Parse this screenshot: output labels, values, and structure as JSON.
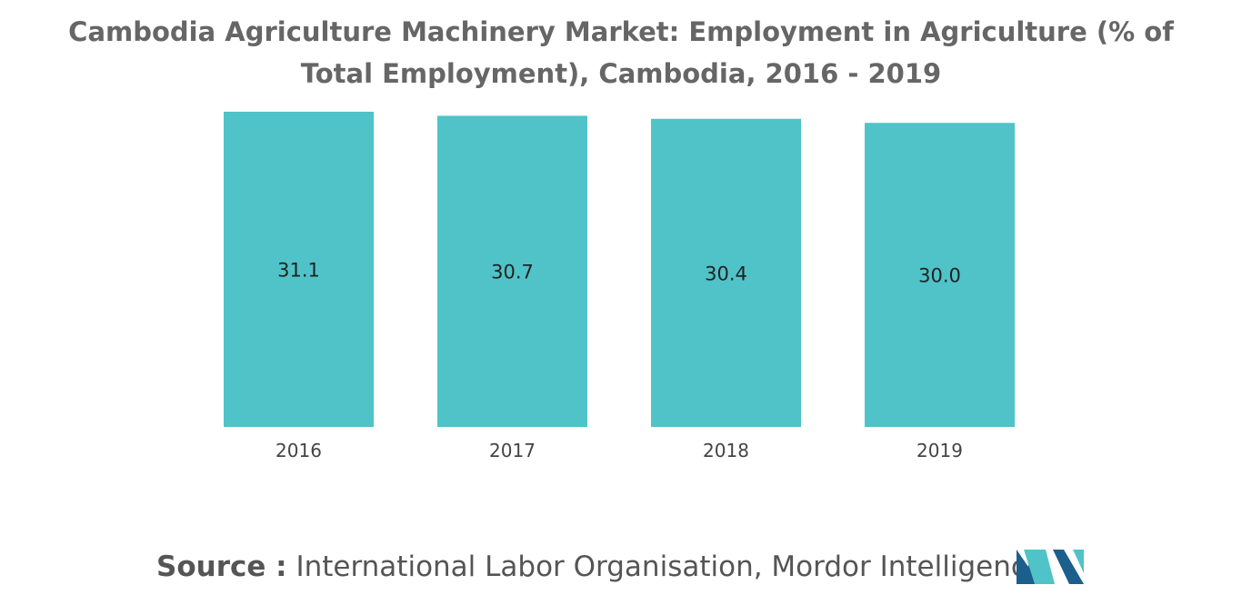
{
  "chart_data": {
    "type": "bar",
    "title": "Cambodia Agriculture Machinery Market: Employment in Agriculture (% of Total Employment), Cambodia, 2016 - 2019",
    "categories": [
      "2016",
      "2017",
      "2018",
      "2019"
    ],
    "values": [
      31.1,
      30.7,
      30.4,
      30.0
    ],
    "data_labels": [
      "31.1",
      "30.7",
      "30.4",
      "30.0"
    ],
    "xlabel": "",
    "ylabel": "",
    "ylim": [
      0,
      31.1
    ],
    "grid": false,
    "legend": "none",
    "bar_color": "#4fc3c8"
  },
  "source": {
    "label": "Source :",
    "text": "International Labor Organisation, Mordor Intelligence"
  },
  "logo": {
    "icon": "mordor-intelligence-logo-icon",
    "colors": [
      "#1b5f8c",
      "#4fc3c8"
    ]
  }
}
